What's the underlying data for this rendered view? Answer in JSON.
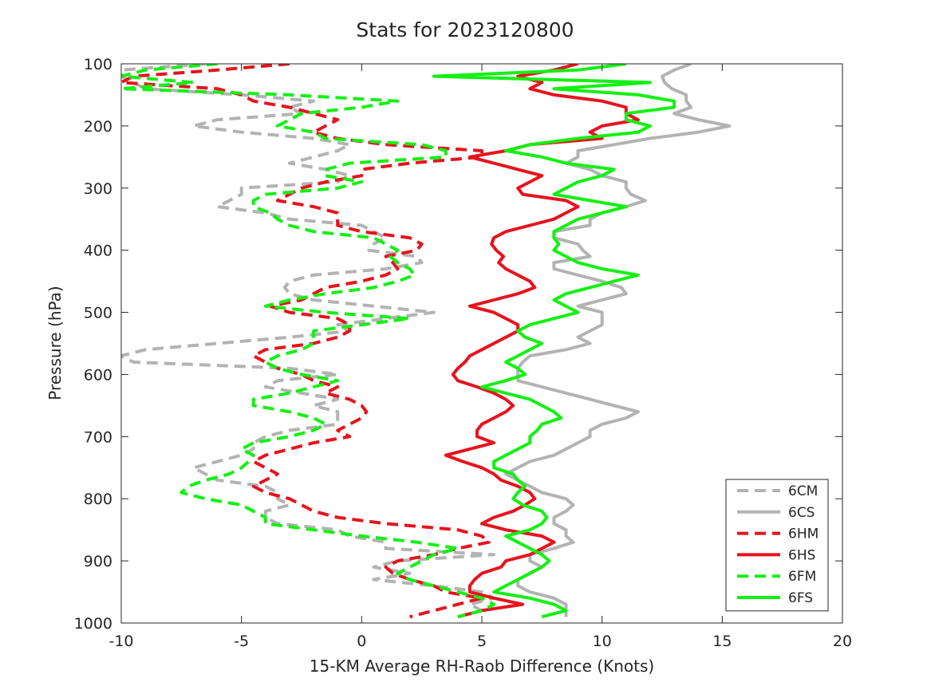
{
  "chart_data": {
    "type": "line",
    "title": "Stats for 2023120800",
    "xlabel": "15-KM Average RH-Raob Difference (Knots)",
    "ylabel": "Pressure (hPa)",
    "xlim": [
      -10,
      20
    ],
    "ylim": [
      100,
      1000
    ],
    "y_reversed": true,
    "xticks": [
      "-10",
      "-5",
      "0",
      "5",
      "10",
      "15",
      "20"
    ],
    "yticks": [
      "100",
      "200",
      "300",
      "400",
      "500",
      "600",
      "700",
      "800",
      "900",
      "1000"
    ],
    "grid": false,
    "legend_position": "bottom-right",
    "pressure_levels": [
      100,
      110,
      120,
      130,
      140,
      150,
      160,
      170,
      180,
      190,
      200,
      210,
      220,
      230,
      240,
      250,
      260,
      270,
      280,
      290,
      300,
      310,
      320,
      330,
      340,
      350,
      360,
      370,
      380,
      390,
      400,
      410,
      420,
      430,
      440,
      450,
      460,
      470,
      480,
      490,
      500,
      510,
      520,
      530,
      540,
      550,
      560,
      570,
      580,
      590,
      600,
      610,
      620,
      630,
      640,
      650,
      660,
      670,
      680,
      690,
      700,
      710,
      720,
      730,
      740,
      750,
      760,
      770,
      780,
      790,
      800,
      810,
      820,
      830,
      840,
      850,
      860,
      870,
      880,
      890,
      900,
      910,
      920,
      930,
      940,
      950,
      960,
      970,
      980,
      990
    ],
    "series": [
      {
        "name": "6CM",
        "color": "#b3b3b3",
        "dash": true,
        "values": [
          -6.5,
          -10,
          -10,
          -9.5,
          -9,
          -5,
          -2,
          -3,
          -2.5,
          -6,
          -7,
          -5,
          -2,
          -0.5,
          -1,
          -2,
          -3,
          -1.5,
          -0.5,
          -1,
          -5,
          -5,
          -5.5,
          -6,
          -4,
          -3,
          0,
          0.5,
          1,
          0.5,
          0.3,
          2.3,
          2.5,
          1,
          -2,
          -3,
          -3.2,
          -3,
          -2,
          0.5,
          3,
          1,
          -1,
          -0.5,
          -3,
          -6,
          -9,
          -10,
          -9.5,
          -3,
          -1,
          -3.5,
          -4,
          -2.5,
          -1,
          -2,
          -1,
          -1,
          -1,
          -3,
          -4,
          -4.5,
          -4.5,
          -5,
          -6,
          -7,
          -6.5,
          -6,
          -4,
          -3.5,
          -3.5,
          -3,
          -4,
          -4,
          -3.5,
          -1,
          -0.5,
          1,
          1,
          5.5,
          1.5,
          0.5,
          2,
          0.5,
          3,
          5,
          5.5,
          4.5,
          5,
          4
        ]
      },
      {
        "name": "6CS",
        "color": "#b3b3b3",
        "dash": false,
        "values": [
          13.7,
          13,
          12.5,
          12.6,
          12.9,
          13.5,
          13.5,
          13.7,
          13,
          14,
          15.3,
          14,
          12,
          10.5,
          9,
          9,
          8.5,
          9.5,
          10,
          11,
          11,
          11.2,
          11.8,
          11,
          10,
          9.5,
          9.5,
          8,
          8,
          9,
          9.2,
          9.5,
          8,
          8,
          9,
          10,
          10.8,
          11,
          10,
          9,
          10,
          10,
          10,
          9.5,
          9,
          9.5,
          8.5,
          7,
          6.7,
          6.5,
          6.5,
          6.5,
          7.5,
          8.5,
          9.5,
          10.5,
          11.5,
          11,
          10,
          9.5,
          9.5,
          9,
          8.5,
          8,
          7,
          6.5,
          6,
          6.5,
          7,
          7.5,
          8.5,
          8.8,
          8.5,
          8,
          8,
          8.5,
          8.5,
          8.8,
          8,
          7,
          7,
          7.5,
          7,
          6.5,
          6.5,
          7,
          8,
          8.5,
          8.5,
          8.5
        ]
      },
      {
        "name": "6HM",
        "color": "#e6141e",
        "dash": true,
        "values": [
          -3,
          -6,
          -9.5,
          -10,
          -6,
          -5,
          -4.5,
          -3,
          -2,
          -1,
          -1.5,
          -2,
          -1,
          1,
          5,
          5,
          2,
          0,
          0,
          -1.5,
          -2.5,
          -3,
          -3.5,
          -2,
          -1,
          -1,
          -1,
          0,
          2,
          2.5,
          2.3,
          1,
          1.3,
          1.5,
          1,
          0,
          -1.5,
          -2,
          -2.5,
          -3.8,
          -3,
          -1,
          -0.5,
          -0.5,
          -1,
          -2,
          -4,
          -4.5,
          -4,
          -3.5,
          -2.5,
          -2,
          -1,
          -1.5,
          -0.5,
          0,
          0.2,
          0,
          -0.5,
          -1,
          -0.5,
          -2,
          -3,
          -4,
          -4.5,
          -4,
          -3.5,
          -4,
          -4.5,
          -4,
          -3,
          -2.5,
          -2,
          -1,
          1,
          4,
          5,
          5.3,
          4,
          3,
          1.5,
          1,
          1.3,
          2,
          3,
          3.5,
          5,
          4,
          3,
          2
        ]
      },
      {
        "name": "6HS",
        "color": "#e6141e",
        "dash": false,
        "values": [
          9,
          8,
          6.5,
          7.5,
          7,
          8,
          10,
          11,
          11,
          11.5,
          10,
          9.5,
          10,
          7,
          6,
          4.5,
          5.5,
          6.5,
          7.5,
          7,
          6.5,
          6.7,
          8.5,
          9,
          8.5,
          8,
          7,
          6,
          5.5,
          5.4,
          5.6,
          5.9,
          5.7,
          6,
          6.5,
          7,
          7.2,
          6.5,
          5.5,
          4.5,
          5.5,
          6,
          6.5,
          6.5,
          6,
          5.5,
          5,
          4.5,
          4.3,
          4,
          3.8,
          4,
          4.8,
          5.5,
          6,
          6.3,
          6,
          5.5,
          5,
          4.8,
          4.8,
          5.5,
          4.5,
          3.5,
          4.2,
          5,
          5.5,
          5.8,
          6.5,
          7,
          7.2,
          6.8,
          6.3,
          5.5,
          5,
          6,
          7.5,
          8,
          7.5,
          7,
          6,
          5.8,
          5,
          4.7,
          4.5,
          4.5,
          5.5,
          6.7,
          5,
          4
        ]
      },
      {
        "name": "6FM",
        "color": "#14f014",
        "dash": true,
        "values": [
          -6,
          -9,
          -10,
          -7,
          -10,
          -3,
          1.5,
          0,
          -2.5,
          -3,
          -3.5,
          -2,
          -1.5,
          2.5,
          3.5,
          3.5,
          -0.5,
          -1.5,
          -1.5,
          0,
          -1,
          -4,
          -4.5,
          -4.5,
          -3.8,
          -3.5,
          -3,
          -2,
          0.5,
          1,
          1.5,
          1.2,
          1.5,
          2,
          2.2,
          1.5,
          0.5,
          -1.5,
          -3,
          -4,
          -1.5,
          2,
          0,
          -2,
          -2,
          -2,
          -2.5,
          -3.5,
          -4,
          -3.5,
          -2.5,
          -1,
          -2,
          -3,
          -4.5,
          -4.5,
          -3,
          -2,
          -1.5,
          -2,
          -3,
          -4.5,
          -5,
          -4.5,
          -4.7,
          -5,
          -5.5,
          -6.5,
          -7.2,
          -7.5,
          -6.5,
          -5,
          -4.5,
          -4,
          -4,
          -2,
          0,
          2.3,
          4,
          3,
          2.5,
          2,
          1.5,
          2,
          3,
          4,
          5,
          5.5,
          5,
          4
        ]
      },
      {
        "name": "6FS",
        "color": "#14f014",
        "dash": false,
        "values": [
          11,
          9,
          3,
          12,
          8,
          11.5,
          13,
          13,
          11,
          11,
          12,
          11.5,
          9,
          7,
          6,
          7.5,
          8.5,
          10.5,
          10,
          9,
          8.5,
          8,
          9.5,
          11,
          10,
          9,
          8.5,
          8,
          8,
          8.2,
          8,
          8.5,
          9,
          10,
          11.5,
          10.5,
          9.5,
          8.5,
          8,
          8.5,
          9,
          8,
          7,
          6.5,
          6.8,
          7.5,
          7,
          6.5,
          6,
          6.5,
          6.8,
          6,
          5,
          6,
          7,
          7.5,
          8,
          8.3,
          7.5,
          7.3,
          7,
          7,
          6.5,
          6,
          5.5,
          5.5,
          6.3,
          6.5,
          6.8,
          6.5,
          6.3,
          6.7,
          7.5,
          7.7,
          7.5,
          7,
          6,
          6.5,
          7,
          7.5,
          7.8,
          7.5,
          7,
          6.5,
          6,
          5.5,
          7,
          8,
          8.5,
          7.5
        ]
      }
    ]
  }
}
